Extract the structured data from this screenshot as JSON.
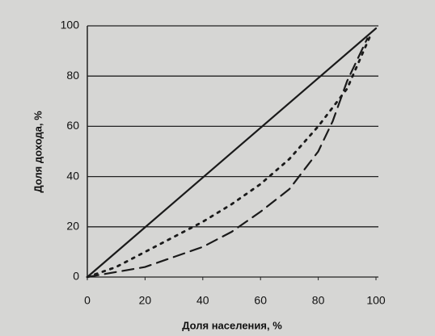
{
  "chart_data": {
    "type": "line",
    "xlabel": "Доля населения, %",
    "ylabel": "Доля дохода, %",
    "xlim": [
      0,
      100
    ],
    "ylim": [
      0,
      100
    ],
    "xticks": [
      0,
      20,
      40,
      60,
      80,
      100
    ],
    "yticks": [
      0,
      20,
      40,
      60,
      80,
      100
    ],
    "grid": true,
    "series": [
      {
        "color": "#1a1a1a",
        "style": "solid",
        "x": [
          0,
          100
        ],
        "values": [
          0,
          99
        ]
      },
      {
        "color": "#1a1a1a",
        "style": "dotted",
        "x": [
          0,
          10,
          20,
          30,
          40,
          50,
          60,
          70,
          80,
          90,
          98
        ],
        "values": [
          0,
          4,
          10,
          16,
          22,
          29,
          37,
          47,
          60,
          75,
          96
        ]
      },
      {
        "color": "#1a1a1a",
        "style": "dashed",
        "x": [
          0,
          10,
          20,
          30,
          40,
          50,
          60,
          70,
          80,
          85,
          90,
          97
        ],
        "values": [
          0,
          2,
          4,
          8,
          12,
          18,
          26,
          35,
          50,
          62,
          78,
          95
        ]
      }
    ]
  }
}
